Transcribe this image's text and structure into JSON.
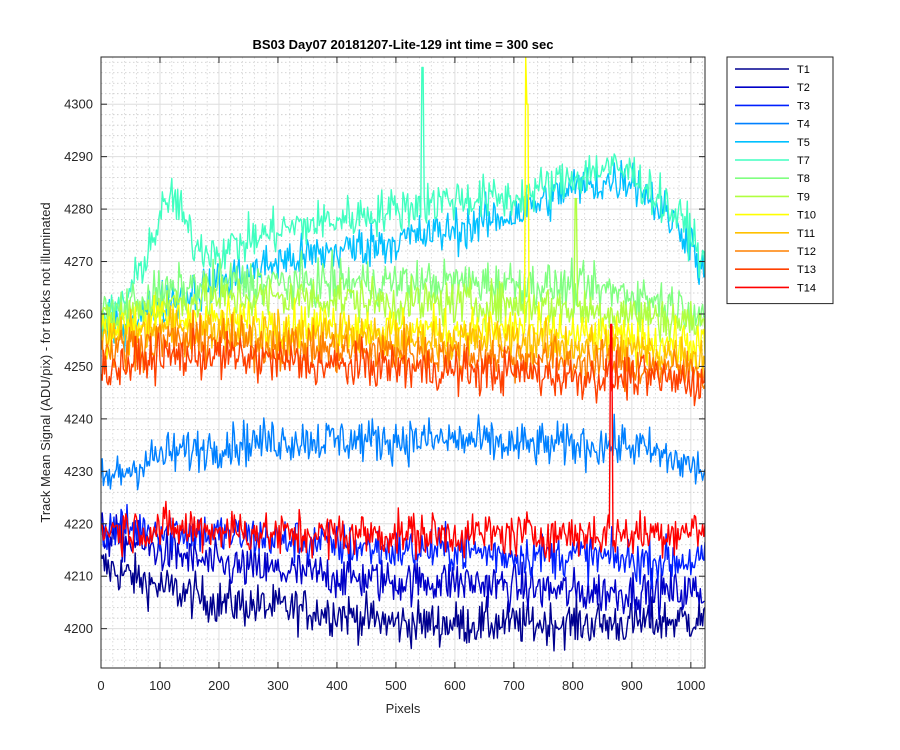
{
  "chart_data": {
    "type": "line",
    "title": "BS03 Day07 20181207-Lite-129 int time = 300 sec",
    "xlabel": "Pixels",
    "ylabel": "Track Mean Signal (ADU/pix) - for tracks not illuminated",
    "xlim": [
      0,
      1024
    ],
    "ylim": [
      4192.5,
      4309
    ],
    "xticks": [
      0,
      100,
      200,
      300,
      400,
      500,
      600,
      700,
      800,
      900,
      1000
    ],
    "yticks": [
      4200,
      4210,
      4220,
      4230,
      4240,
      4250,
      4260,
      4270,
      4280,
      4290,
      4300
    ],
    "grid": true,
    "minor_grid_y": true,
    "legend_position": "outside-right",
    "noise_amplitude_adu": 3,
    "x_sample_step": 2,
    "series": [
      {
        "name": "T1",
        "color": "#00008F",
        "x": [
          0,
          100,
          200,
          300,
          400,
          500,
          600,
          700,
          800,
          900,
          1024
        ],
        "y": [
          4212,
          4208,
          4205,
          4204,
          4203,
          4201,
          4201,
          4201,
          4201,
          4201,
          4202
        ]
      },
      {
        "name": "T2",
        "color": "#0000C8",
        "x": [
          0,
          100,
          200,
          300,
          400,
          500,
          600,
          700,
          800,
          900,
          1024
        ],
        "y": [
          4218,
          4215,
          4212,
          4211,
          4210,
          4209,
          4209,
          4208,
          4207,
          4207,
          4207
        ]
      },
      {
        "name": "T3",
        "color": "#0020FF",
        "x": [
          0,
          100,
          200,
          300,
          400,
          500,
          600,
          700,
          800,
          900,
          1024
        ],
        "y": [
          4219,
          4219,
          4218,
          4217,
          4216,
          4215,
          4215,
          4214,
          4214,
          4213,
          4213
        ]
      },
      {
        "name": "T4",
        "color": "#0080FF",
        "x": [
          0,
          100,
          200,
          300,
          400,
          500,
          600,
          700,
          800,
          900,
          1024
        ],
        "y": [
          4228,
          4233,
          4235,
          4236,
          4236,
          4236,
          4236,
          4235,
          4235,
          4235,
          4230
        ]
      },
      {
        "name": "T5",
        "color": "#00C0FF",
        "x": [
          0,
          100,
          200,
          300,
          400,
          500,
          600,
          700,
          800,
          900,
          1000,
          1024
        ],
        "y": [
          4256,
          4262,
          4266,
          4270,
          4272,
          4274,
          4276,
          4279,
          4284,
          4286,
          4274,
          4266
        ]
      },
      {
        "name": "T7",
        "color": "#40FFC0",
        "x": [
          0,
          50,
          100,
          120,
          160,
          200,
          300,
          400,
          500,
          600,
          700,
          800,
          850,
          900,
          1000,
          1024
        ],
        "y": [
          4258,
          4264,
          4278,
          4283,
          4273,
          4272,
          4276,
          4278,
          4280,
          4282,
          4282,
          4286,
          4288,
          4287,
          4276,
          4268
        ]
      },
      {
        "name": "T8",
        "color": "#80FF80",
        "x": [
          0,
          100,
          200,
          300,
          400,
          500,
          600,
          700,
          800,
          900,
          1024
        ],
        "y": [
          4260,
          4264,
          4266,
          4266,
          4266,
          4266,
          4266,
          4266,
          4265,
          4264,
          4260
        ]
      },
      {
        "name": "T9",
        "color": "#B0FF40",
        "x": [
          0,
          100,
          200,
          300,
          400,
          500,
          600,
          700,
          800,
          900,
          1024
        ],
        "y": [
          4258,
          4262,
          4263,
          4263,
          4263,
          4262,
          4262,
          4262,
          4261,
          4260,
          4258
        ]
      },
      {
        "name": "T10",
        "color": "#FFFF00",
        "x": [
          0,
          100,
          200,
          300,
          400,
          500,
          600,
          700,
          800,
          900,
          1024
        ],
        "y": [
          4257,
          4259,
          4259,
          4258,
          4258,
          4257,
          4257,
          4257,
          4256,
          4255,
          4254
        ]
      },
      {
        "name": "T11",
        "color": "#FFC000",
        "x": [
          0,
          100,
          200,
          300,
          400,
          500,
          600,
          700,
          800,
          900,
          1024
        ],
        "y": [
          4255,
          4257,
          4257,
          4256,
          4256,
          4255,
          4255,
          4255,
          4254,
          4253,
          4252
        ]
      },
      {
        "name": "T12",
        "color": "#FF8000",
        "x": [
          0,
          100,
          200,
          300,
          400,
          500,
          600,
          700,
          800,
          900,
          1024
        ],
        "y": [
          4253,
          4255,
          4255,
          4254,
          4253,
          4253,
          4252,
          4252,
          4251,
          4250,
          4249
        ]
      },
      {
        "name": "T13",
        "color": "#FF4000",
        "x": [
          0,
          100,
          200,
          300,
          400,
          500,
          600,
          700,
          800,
          900,
          1024
        ],
        "y": [
          4249,
          4252,
          4252,
          4251,
          4250,
          4250,
          4249,
          4249,
          4248,
          4248,
          4247
        ]
      },
      {
        "name": "T14",
        "color": "#FF0000",
        "x": [
          0,
          100,
          200,
          300,
          400,
          500,
          600,
          700,
          800,
          900,
          1024
        ],
        "y": [
          4219,
          4219,
          4219,
          4218,
          4218,
          4218,
          4218,
          4218,
          4218,
          4218,
          4219
        ]
      }
    ],
    "spikes": [
      {
        "series": "T7",
        "x": 545,
        "y": 4307
      },
      {
        "series": "T10",
        "x": 720,
        "y": 4309
      },
      {
        "series": "T10",
        "x": 723,
        "y": 4300
      },
      {
        "series": "T9",
        "x": 805,
        "y": 4282
      },
      {
        "series": "T5",
        "x": 780,
        "y": 4281
      },
      {
        "series": "T14",
        "x": 865,
        "y": 4258
      }
    ]
  }
}
